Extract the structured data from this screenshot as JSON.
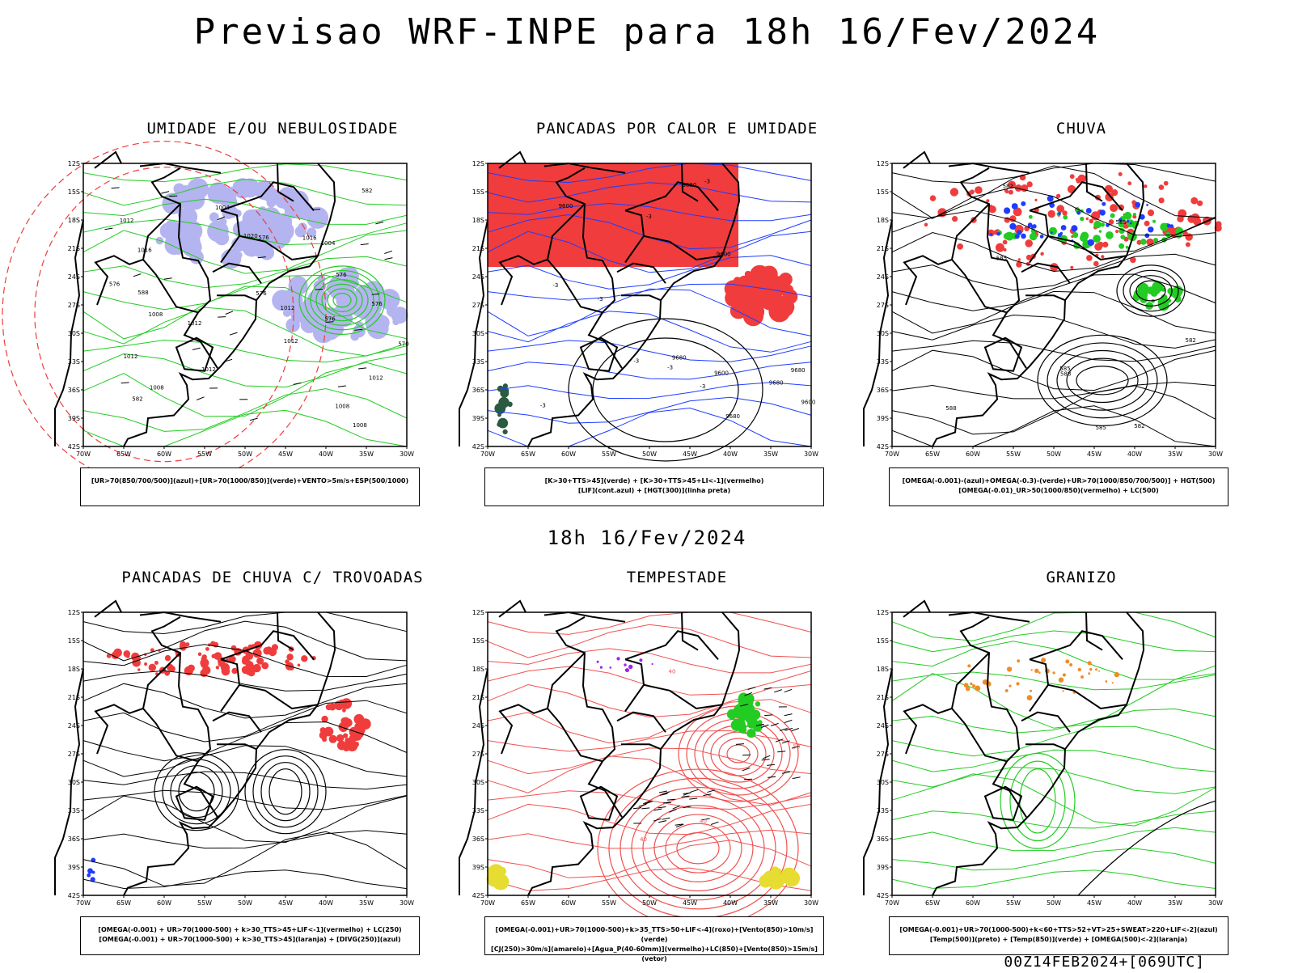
{
  "header": {
    "title": "Previsao WRF-INPE  para 18h 16/Fev/2024",
    "mid_title": "18h 16/Fev/2024",
    "footer": "00Z14FEB2024+[069UTC]"
  },
  "axes": {
    "lat_labels": [
      "12S",
      "15S",
      "18S",
      "21S",
      "24S",
      "27S",
      "30S",
      "33S",
      "36S",
      "39S",
      "42S"
    ],
    "lon_labels": [
      "70W",
      "65W",
      "60W",
      "55W",
      "50W",
      "45W",
      "40W",
      "35W",
      "30W"
    ]
  },
  "panels": [
    {
      "id": "p1",
      "title": "UMIDADE E/OU NEBULOSIDADE",
      "legend": [
        "[UR>70(850/700/500)](azul)+[UR>70(1000/850)](verde)+VENTO>5m/s+ESP(500/1000)"
      ],
      "contour_labels": [
        "1008",
        "1008",
        "1012",
        "1012",
        "1012",
        "1016",
        "1008",
        "1012",
        "1004",
        "1020",
        "1016",
        "1008",
        "1012",
        "1004",
        "1012",
        "1012",
        "576",
        "576",
        "576",
        "582",
        "582",
        "576",
        "576",
        "570",
        "576",
        "588"
      ]
    },
    {
      "id": "p2",
      "title": "PANCADAS POR CALOR E UMIDADE",
      "legend": [
        "[K>30+TTS>45](verde) + [K>30+TTS>45+LI<-1](vermelho)",
        "[LIF](cont.azul) + [HGT(300)](linha preta)"
      ],
      "contour_labels": [
        "9680",
        "9680",
        "9680",
        "9680",
        "9600",
        "9600",
        "9680",
        "9600",
        "9600",
        "-3",
        "-3",
        "-3",
        "-3",
        "-3",
        "-3",
        "-3",
        "-3"
      ]
    },
    {
      "id": "p3",
      "title": "CHUVA",
      "legend": [
        "[OMEGA(-0.001)-(azul)+OMEGA(-0.3)-(verde)+UR>70(1000/850/700/500)] + HGT(500)",
        "[OMEGA(-0.01)_UR>50(1000/850)(vermelho) + LC(500)"
      ],
      "contour_labels": [
        "582",
        "582",
        "588",
        "588",
        "585",
        "585",
        "582",
        "585",
        "585"
      ]
    },
    {
      "id": "p4",
      "title": "PANCADAS DE CHUVA C/ TROVOADAS",
      "legend": [
        "[OMEGA(-0.001) + UR>70(1000-500) + k>30_TTS>45+LIF<-1](vermelho) + LC(250)",
        "[OMEGA(-0.001) + UR>70(1000-500) + k>30_TTS>45](laranja) + [DIVG(250)](azul)"
      ],
      "contour_labels": []
    },
    {
      "id": "p5",
      "title": "TEMPESTADE",
      "legend": [
        "[OMEGA(-0.001)+UR>70(1000-500)+k>35_TTS>50+LIF<-4](roxo)+[Vento(850)>10m/s](verde)",
        "[CJ(250)>30m/s](amarelo)+[Agua_P(40-60mm)](vermelho)+LC(850)+[Vento(850)>15m/s](vetor)"
      ],
      "contour_labels": [
        "50",
        "40",
        "40",
        "40"
      ]
    },
    {
      "id": "p6",
      "title": "GRANIZO",
      "legend": [
        "[OMEGA(-0.001)+UR>70(1000-500)+k<60+TTS>52+VT>25+SWEAT>220+LIF<-2](azul)",
        "[Temp(500)](preto) + [Temp(850)](verde) + [OMEGA(500)<-2](laranja)"
      ],
      "contour_labels": []
    }
  ],
  "colors": {
    "humid_blue": "#b4b4f0",
    "green": "#22cc22",
    "red": "#f03c3c",
    "blue": "#1e3cff",
    "orange": "#f08c28",
    "yellow": "#e6dc32",
    "dark_green": "#2a5a40",
    "purple": "#a020f0",
    "storm_red_line": "#f05050"
  }
}
